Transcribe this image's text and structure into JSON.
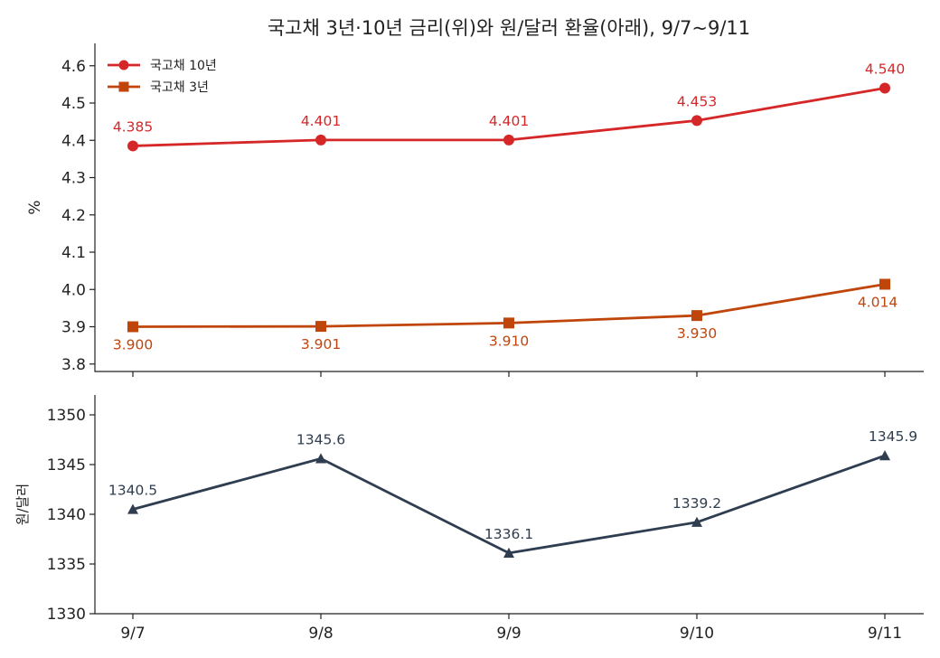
{
  "chart_data": [
    {
      "type": "line",
      "title": "국고채 3년·10년 금리(위)와 원/달러 환율(아래), 9/7~9/11",
      "categories": [
        "9/7",
        "9/8",
        "9/9",
        "9/10",
        "9/11"
      ],
      "ylabel": "%",
      "ylim": [
        3.78,
        4.66
      ],
      "yticks": [
        3.8,
        3.9,
        4.0,
        4.1,
        4.2,
        4.3,
        4.4,
        4.5,
        4.6
      ],
      "grid": false,
      "legend_placement": "top-left",
      "series": [
        {
          "name": "국고채 10년",
          "values": [
            4.385,
            4.401,
            4.401,
            4.453,
            4.54
          ],
          "color": "#d62728",
          "marker": "circle"
        },
        {
          "name": "국고채 3년",
          "values": [
            3.9,
            3.901,
            3.91,
            3.93,
            4.014
          ],
          "color": "#c0450b",
          "marker": "square"
        }
      ]
    },
    {
      "type": "line",
      "categories": [
        "9/7",
        "9/8",
        "9/9",
        "9/10",
        "9/11"
      ],
      "ylabel": "원/달러",
      "ylim": [
        1330,
        1352
      ],
      "yticks": [
        1330,
        1335,
        1340,
        1345,
        1350
      ],
      "grid": false,
      "series": [
        {
          "values": [
            1340.5,
            1345.6,
            1336.1,
            1339.2,
            1345.9
          ],
          "color": "#2e3d50",
          "marker": "triangle"
        }
      ]
    }
  ]
}
